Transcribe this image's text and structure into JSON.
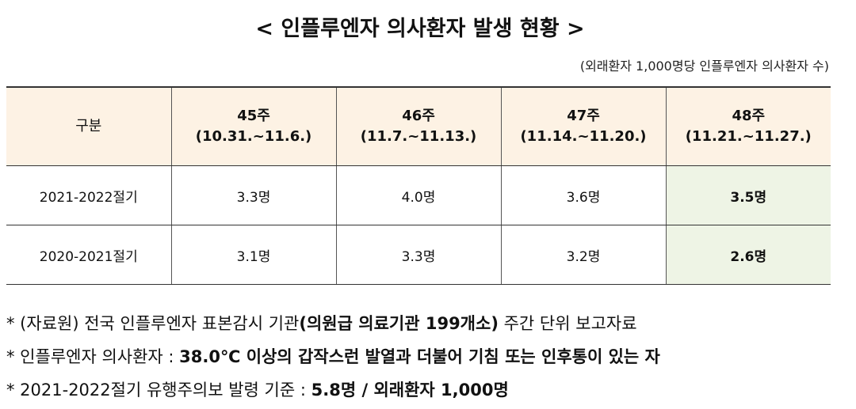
{
  "title": "< 인플루엔자 의사환자 발생 현황 >",
  "unit_note": "(외래환자 1,000명당 인플루엔자 의사환자 수)",
  "table": {
    "header": [
      "구분",
      [
        "45주",
        "(10.31.~11.6.)"
      ],
      [
        "46주",
        "(11.7.~11.13.)"
      ],
      [
        "47주",
        "(11.14.~11.20.)"
      ],
      [
        "48주",
        "(11.21.~11.27.)"
      ]
    ],
    "rows": [
      [
        "2021-2022절기",
        "3.3명",
        "4.0명",
        "3.6명",
        "3.5명"
      ],
      [
        "2020-2021절기",
        "3.1명",
        "3.3명",
        "3.2명",
        "2.6명"
      ]
    ]
  },
  "notes": [
    [
      {
        "text": "* (자료원) 전국 인플루엔자 표본감시 기관",
        "bold": false
      },
      {
        "text": "(의원급 의료기관 199개소)",
        "bold": true
      },
      {
        "text": " 주간 단위 보고자료",
        "bold": false
      }
    ],
    [
      {
        "text": "* 인플루엔자 의사환자 : ",
        "bold": false
      },
      {
        "text": "38.0℃ 이상의 갑작스런 발열과 더불어 기침 또는 인후통이 있는 자",
        "bold": true
      }
    ],
    [
      {
        "text": "* 2021-2022절기 유행주의보 발령 기준 : ",
        "bold": false
      },
      {
        "text": "5.8명 / 외래환자 1,000명",
        "bold": true
      }
    ]
  ]
}
